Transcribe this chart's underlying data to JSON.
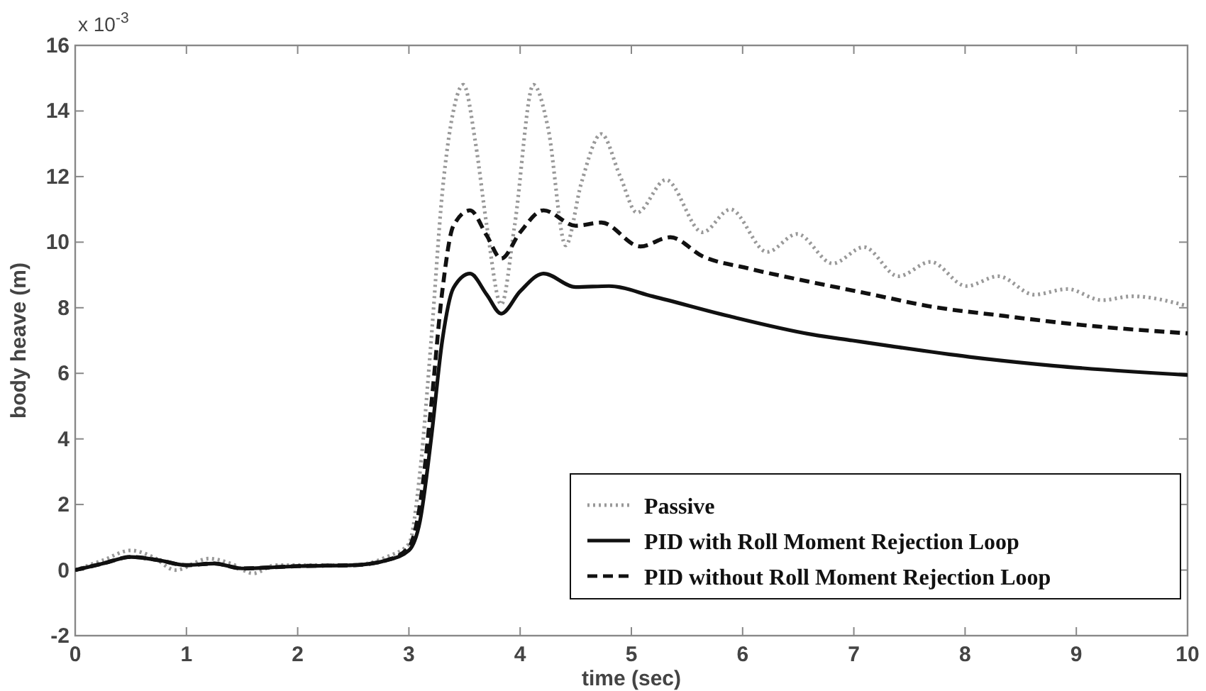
{
  "chart_data": {
    "type": "line",
    "xlabel": "time (sec)",
    "ylabel": "body heave (m)",
    "annotations": [
      "x 10$^{-3}$"
    ],
    "xlim": [
      0,
      10
    ],
    "xticks": [
      0,
      1,
      2,
      3,
      4,
      5,
      6,
      7,
      8,
      9,
      10
    ],
    "ylim": [
      -2,
      16
    ],
    "yticks": [
      -2,
      0,
      2,
      4,
      6,
      8,
      10,
      12,
      14,
      16
    ],
    "grid": false,
    "legend": "bottom right",
    "series": [
      {
        "name": "Passive",
        "color": "#999999",
        "line_style": "dotted",
        "x": [
          0,
          0.25,
          0.5,
          0.7,
          0.9,
          1.2,
          1.4,
          1.6,
          1.8,
          2,
          2.5,
          2.8,
          3,
          3.1,
          3.2,
          3.3,
          3.4,
          3.49,
          3.6,
          3.7,
          3.83,
          3.95,
          4.12,
          4.25,
          4.41,
          4.55,
          4.73,
          4.9,
          5.05,
          5.31,
          5.64,
          5.89,
          6.22,
          6.49,
          6.81,
          7.09,
          7.4,
          7.69,
          8.01,
          8.3,
          8.62,
          8.92,
          9.23,
          9.5,
          10
        ],
        "values": [
          0,
          0.3,
          0.6,
          0.4,
          0,
          0.35,
          0.2,
          -0.1,
          0.15,
          0.15,
          0.15,
          0.4,
          0.8,
          3,
          7,
          11.5,
          14,
          14.8,
          13,
          10.5,
          8.1,
          10.5,
          14.8,
          13.5,
          9.9,
          11.8,
          13.3,
          12,
          10.9,
          11.9,
          10.3,
          11,
          9.7,
          10.25,
          9.35,
          9.85,
          8.96,
          9.4,
          8.66,
          8.96,
          8.4,
          8.57,
          8.23,
          8.35,
          8.05
        ]
      },
      {
        "name": "PID with Roll Moment Rejection Loop",
        "color": "#111111",
        "line_style": "solid",
        "x": [
          0,
          0.25,
          0.5,
          0.75,
          1,
          1.25,
          1.5,
          1.75,
          2,
          2.5,
          2.8,
          3,
          3.1,
          3.2,
          3.3,
          3.4,
          3.55,
          3.7,
          3.83,
          4,
          4.21,
          4.5,
          4.8,
          5.19,
          5.87,
          6.63,
          6.99,
          7.31,
          8.04,
          8.8,
          10
        ],
        "values": [
          0,
          0.2,
          0.4,
          0.3,
          0.15,
          0.2,
          0.05,
          0.08,
          0.12,
          0.15,
          0.3,
          0.6,
          1.5,
          4,
          7,
          8.6,
          9.04,
          8.4,
          7.82,
          8.5,
          9.04,
          8.63,
          8.66,
          8.35,
          7.75,
          7.18,
          7,
          6.84,
          6.5,
          6.23,
          5.95
        ]
      },
      {
        "name": "PID without Roll Moment Rejection Loop",
        "color": "#111111",
        "line_style": "dashed",
        "x": [
          0,
          0.25,
          0.5,
          0.75,
          1,
          1.25,
          1.5,
          1.75,
          2,
          2.5,
          2.8,
          3,
          3.1,
          3.2,
          3.3,
          3.4,
          3.55,
          3.7,
          3.83,
          4,
          4.21,
          4.5,
          4.73,
          5.08,
          5.35,
          5.64,
          6.05,
          6.59,
          7.13,
          7.67,
          8.35,
          9.03,
          10
        ],
        "values": [
          0,
          0.2,
          0.4,
          0.3,
          0.15,
          0.2,
          0.05,
          0.08,
          0.12,
          0.15,
          0.3,
          0.7,
          2,
          5,
          8.5,
          10.5,
          10.97,
          10.2,
          9.5,
          10.3,
          10.97,
          10.5,
          10.6,
          9.87,
          10.15,
          9.57,
          9.2,
          8.8,
          8.43,
          8.05,
          7.75,
          7.48,
          7.22
        ]
      }
    ]
  }
}
